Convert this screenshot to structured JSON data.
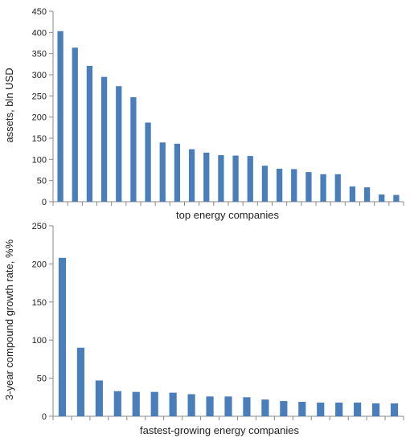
{
  "chart_data": [
    {
      "type": "bar",
      "ylabel": "assets, bln USD",
      "xlabel": "top energy companies",
      "ylim": [
        0,
        450
      ],
      "yticks": [
        0,
        50,
        100,
        150,
        200,
        250,
        300,
        350,
        400,
        450
      ],
      "grid": false,
      "bar_color": "#4a7ebb",
      "values": [
        403,
        364,
        321,
        295,
        273,
        247,
        187,
        140,
        137,
        124,
        116,
        110,
        109,
        108,
        85,
        78,
        77,
        70,
        65,
        65,
        36,
        34,
        17,
        16
      ]
    },
    {
      "type": "bar",
      "ylabel": "3-year compound growth rate, %%",
      "xlabel": "fastest-growing energy companies",
      "ylim": [
        0,
        250
      ],
      "yticks": [
        0,
        50,
        100,
        150,
        200,
        250
      ],
      "grid": false,
      "bar_color": "#4a7ebb",
      "values": [
        208,
        90,
        47,
        33,
        32,
        32,
        31,
        29,
        26,
        26,
        25,
        22,
        20,
        19,
        18,
        18,
        18,
        17,
        17
      ]
    }
  ]
}
